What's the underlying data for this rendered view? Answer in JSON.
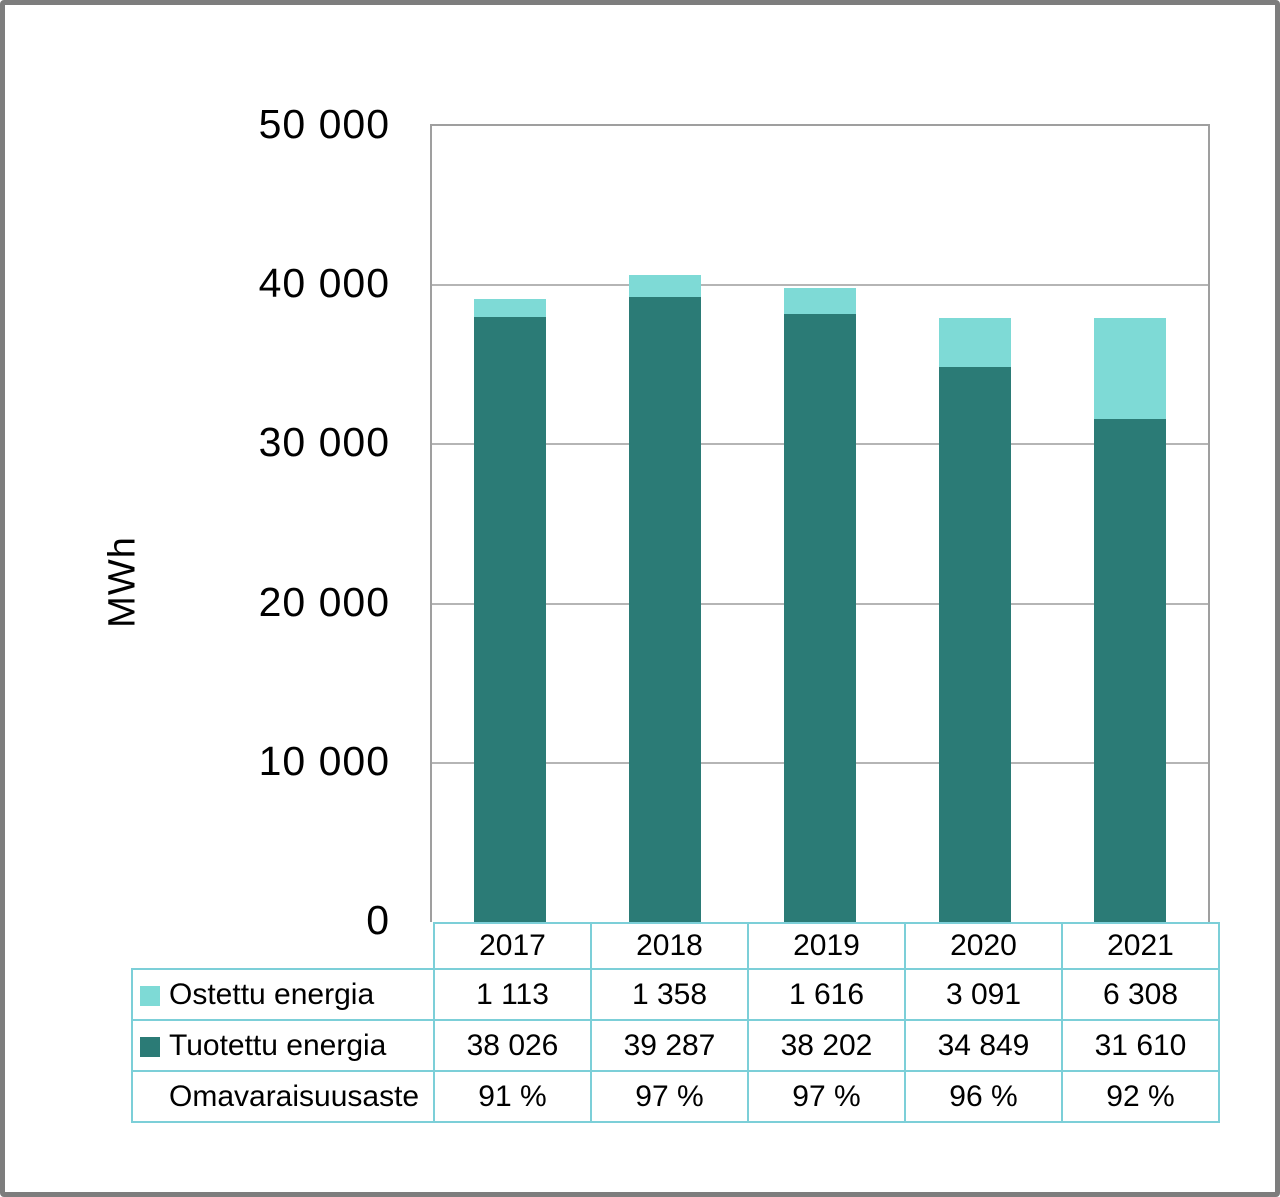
{
  "chart_data": {
    "type": "bar",
    "stacked": true,
    "title": "",
    "ylabel": "MWh",
    "xlabel": "",
    "categories": [
      "2017",
      "2018",
      "2019",
      "2020",
      "2021"
    ],
    "series": [
      {
        "name": "Tuotettu energia",
        "color": "#2b7b76",
        "values": [
          38026,
          39287,
          38202,
          34849,
          31610
        ]
      },
      {
        "name": "Ostettu energia",
        "color": "#7edad6",
        "values": [
          1113,
          1358,
          1616,
          3091,
          6308
        ]
      }
    ],
    "percent_row": {
      "name": "Omavaraisuusaste",
      "values": [
        "91 %",
        "97 %",
        "97 %",
        "96 %",
        "92 %"
      ]
    },
    "ylim": [
      0,
      50000
    ],
    "ytick_interval": 10000,
    "ytick_labels": [
      "50 000",
      "40 000",
      "30 000",
      "20 000",
      "10 000",
      "0"
    ],
    "grid": true,
    "legend_position": "data-table"
  },
  "table": {
    "header": [
      "2017",
      "2018",
      "2019",
      "2020",
      "2021"
    ],
    "rows": [
      {
        "label": "Ostettu energia",
        "swatch": "#7edad6",
        "values": [
          "1 113",
          "1 358",
          "1 616",
          "3 091",
          "6 308"
        ]
      },
      {
        "label": "Tuotettu energia",
        "swatch": "#2b7b76",
        "values": [
          "38 026",
          "39 287",
          "38 202",
          "34 849",
          "31 610"
        ]
      },
      {
        "label": "Omavaraisuusaste",
        "swatch": null,
        "values": [
          "91 %",
          "97 %",
          "97 %",
          "96 %",
          "92 %"
        ]
      }
    ]
  },
  "colors": {
    "produced": "#2b7b76",
    "purchased": "#7edad6",
    "gridline": "#b5b5b5",
    "plot_border": "#9f9f9f",
    "table_border": "#7ccfd8",
    "frame_border": "#7d7d7d",
    "text": "#000000"
  }
}
